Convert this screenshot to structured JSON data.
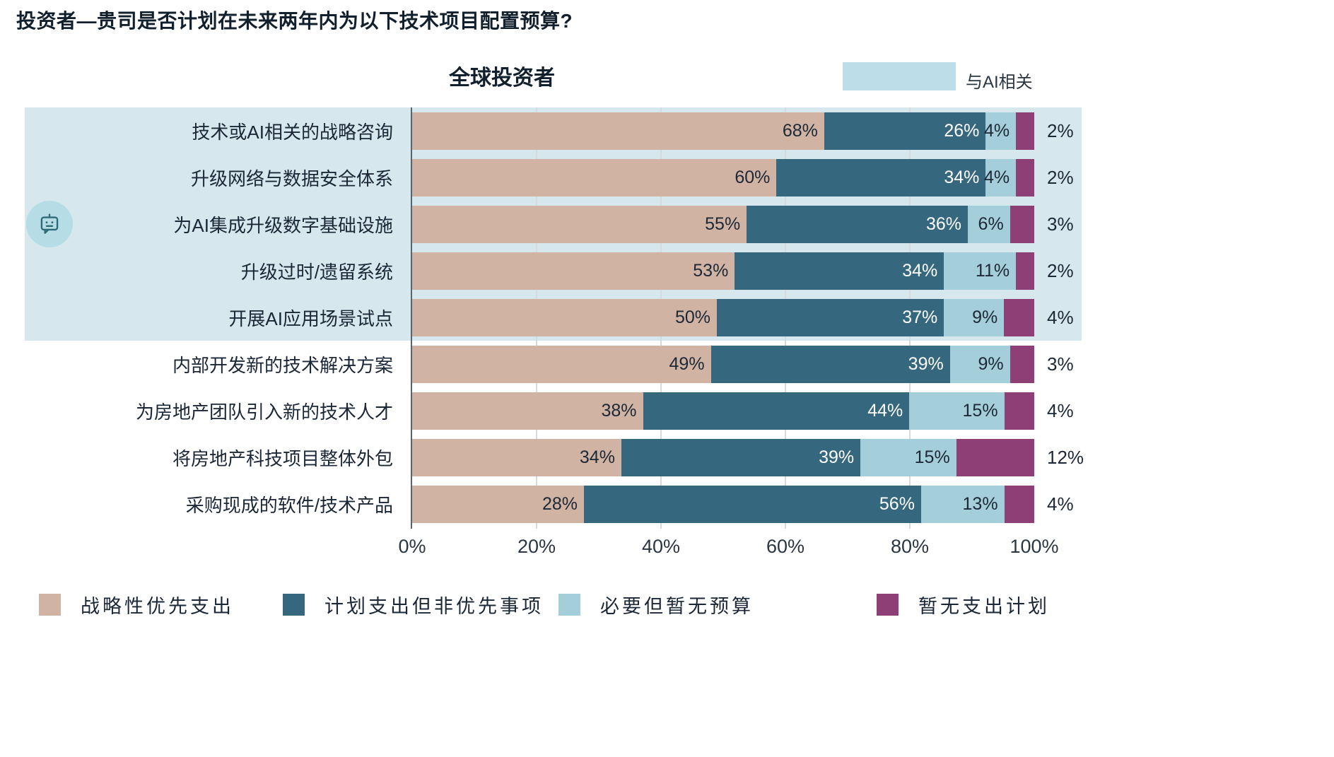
{
  "title": "投资者—贵司是否计划在未来两年内为以下技术项目配置预算?",
  "header": {
    "subtitle": "全球投资者",
    "ai_label": "与AI相关"
  },
  "colors": {
    "strategic": "#d1b3a4",
    "planned": "#35687e",
    "needed_no_budget": "#a5cedb",
    "no_plan": "#8e4076",
    "ai_highlight": "#d7e7ee",
    "ai_legend_swatch": "#bddee8"
  },
  "chart_data": {
    "type": "bar",
    "variant": "horizontal-stacked",
    "title": "投资者—贵司是否计划在未来两年内为以下技术项目配置预算?",
    "subtitle": "全球投资者",
    "ai_region_label": "与AI相关",
    "ai_related_rows": 5,
    "xlim": [
      0,
      100
    ],
    "x_ticks": [
      "0%",
      "20%",
      "40%",
      "60%",
      "80%",
      "100%"
    ],
    "categories": [
      "技术或AI相关的战略咨询",
      "升级网络与数据安全体系",
      "为AI集成升级数字基础设施",
      "升级过时/遗留系统",
      "开展AI应用场景试点",
      "内部开发新的技术解决方案",
      "为房地产团队引入新的技术人才",
      "将房地产科技项目整体外包",
      "采购现成的软件/技术产品"
    ],
    "series": [
      {
        "name": "战略性优先支出",
        "color": "#d1b3a4",
        "values": [
          68,
          60,
          55,
          53,
          50,
          49,
          38,
          34,
          28
        ]
      },
      {
        "name": "计划支出但非优先事项",
        "color": "#35687e",
        "values": [
          26,
          34,
          36,
          34,
          37,
          39,
          44,
          39,
          56
        ]
      },
      {
        "name": "必要但暂无预算",
        "color": "#a5cedb",
        "values": [
          4,
          4,
          6,
          11,
          9,
          9,
          15,
          15,
          13
        ]
      },
      {
        "name": "暂无支出计划",
        "color": "#8e4076",
        "values": [
          2,
          2,
          3,
          2,
          4,
          3,
          4,
          12,
          4
        ]
      }
    ],
    "legend_position": "bottom"
  }
}
